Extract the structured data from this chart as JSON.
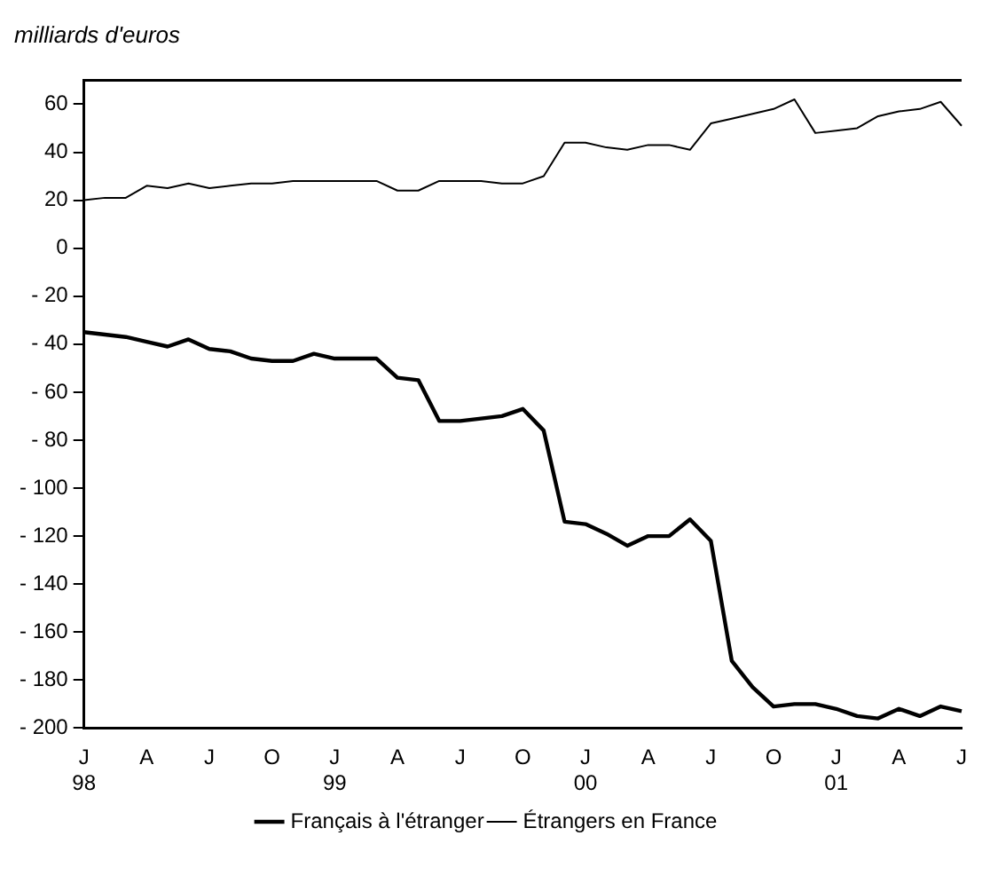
{
  "chart_data": {
    "type": "line",
    "ylabel": "milliards d'euros",
    "categories": [
      "J\n98",
      null,
      null,
      "A",
      null,
      null,
      "J",
      null,
      null,
      "O",
      null,
      null,
      "J\n99",
      null,
      null,
      "A",
      null,
      null,
      "J",
      null,
      null,
      "O",
      null,
      null,
      "J\n00",
      null,
      null,
      "A",
      null,
      null,
      "J",
      null,
      null,
      "O",
      null,
      null,
      "J\n01",
      null,
      null,
      "A",
      null,
      null,
      "J"
    ],
    "series": [
      {
        "name": "Français à l'étranger",
        "color": "#000000",
        "values": [
          -35,
          -36,
          -37,
          -39,
          -41,
          -38,
          -42,
          -43,
          -46,
          -47,
          -47,
          -44,
          -46,
          -46,
          -46,
          -54,
          -55,
          -72,
          -72,
          -71,
          -70,
          -67,
          -76,
          -114,
          -115,
          -119,
          -124,
          -120,
          -120,
          -113,
          -122,
          -172,
          -183,
          -191,
          -190,
          -190,
          -192,
          -195,
          -196,
          -192,
          -195,
          -191,
          -193
        ]
      },
      {
        "name": "Étrangers en France",
        "color": "#000000",
        "values": [
          20,
          21,
          21,
          26,
          25,
          27,
          25,
          26,
          27,
          27,
          28,
          28,
          28,
          28,
          28,
          24,
          24,
          28,
          28,
          28,
          27,
          27,
          30,
          44,
          44,
          42,
          41,
          43,
          43,
          41,
          52,
          54,
          56,
          58,
          62,
          48,
          49,
          50,
          55,
          57,
          58,
          61,
          51
        ]
      }
    ],
    "ylim": [
      -200,
      70
    ],
    "yticks": [
      {
        "value": -200,
        "label": "- 200"
      },
      {
        "value": -180,
        "label": "- 180"
      },
      {
        "value": -160,
        "label": "- 160"
      },
      {
        "value": -140,
        "label": "- 140"
      },
      {
        "value": -120,
        "label": "- 120"
      },
      {
        "value": -100,
        "label": "- 100"
      },
      {
        "value": -80,
        "label": "- 80"
      },
      {
        "value": -60,
        "label": "- 60"
      },
      {
        "value": -40,
        "label": "- 40"
      },
      {
        "value": -20,
        "label": "- 20"
      },
      0,
      20,
      40,
      60
    ],
    "grid": false,
    "legend": "bottom",
    "marker": "none",
    "line_style": "solid"
  }
}
